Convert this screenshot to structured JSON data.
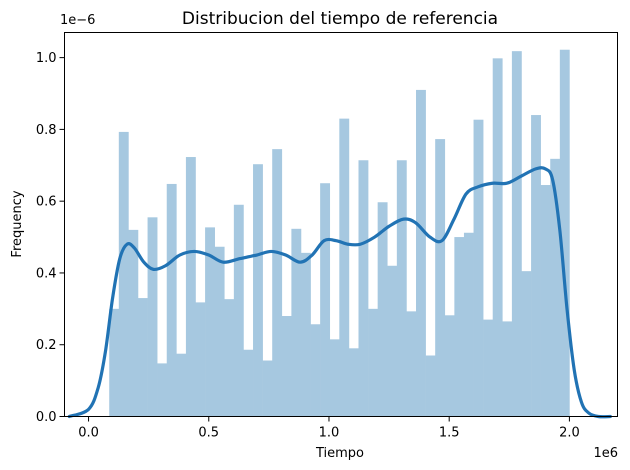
{
  "chart_data": {
    "type": "histogram-kde",
    "title": "Distribucion del tiempo de referencia",
    "xlabel": "Tiempo",
    "ylabel": "Frequency",
    "x_multiplier": "1e6",
    "y_multiplier": "1e−6",
    "xlim": [
      -0.1,
      2.2
    ],
    "ylim": [
      0,
      1.07
    ],
    "xticks": [
      0.0,
      0.5,
      1.0,
      1.5,
      2.0
    ],
    "xtick_labels": [
      "0.0",
      "0.5",
      "1.0",
      "1.5",
      "2.0"
    ],
    "yticks": [
      0.0,
      0.2,
      0.4,
      0.6,
      0.8,
      1.0
    ],
    "ytick_labels": [
      "0.0",
      "0.2",
      "0.4",
      "0.6",
      "0.8",
      "1.0"
    ],
    "bar_color": "#a6c8e0",
    "line_color": "#2173b4",
    "bins": {
      "start": 0.086,
      "end": 2.0,
      "values": [
        0.3,
        0.793,
        0.52,
        0.33,
        0.555,
        0.148,
        0.648,
        0.175,
        0.723,
        0.318,
        0.527,
        0.473,
        0.327,
        0.59,
        0.186,
        0.703,
        0.156,
        0.745,
        0.28,
        0.523,
        0.456,
        0.257,
        0.65,
        0.215,
        0.83,
        0.19,
        0.714,
        0.3,
        0.597,
        0.42,
        0.714,
        0.293,
        0.91,
        0.17,
        0.773,
        0.282,
        0.5,
        0.512,
        0.827,
        0.27,
        0.998,
        0.265,
        1.018,
        0.405,
        0.84,
        0.645,
        0.718,
        1.022
      ]
    },
    "kde": {
      "x": [
        -0.08,
        0.0,
        0.04,
        0.07,
        0.1,
        0.13,
        0.16,
        0.19,
        0.23,
        0.27,
        0.32,
        0.38,
        0.44,
        0.5,
        0.56,
        0.63,
        0.7,
        0.76,
        0.82,
        0.88,
        0.93,
        0.98,
        1.03,
        1.08,
        1.13,
        1.19,
        1.25,
        1.31,
        1.36,
        1.42,
        1.47,
        1.52,
        1.57,
        1.62,
        1.68,
        1.74,
        1.8,
        1.86,
        1.9,
        1.93,
        1.96,
        1.99,
        2.02,
        2.05,
        2.08,
        2.12,
        2.17
      ],
      "y": [
        0.0,
        0.02,
        0.08,
        0.18,
        0.33,
        0.44,
        0.48,
        0.47,
        0.43,
        0.41,
        0.42,
        0.45,
        0.46,
        0.45,
        0.43,
        0.44,
        0.45,
        0.46,
        0.45,
        0.43,
        0.45,
        0.49,
        0.49,
        0.48,
        0.48,
        0.5,
        0.53,
        0.55,
        0.54,
        0.5,
        0.49,
        0.55,
        0.62,
        0.64,
        0.65,
        0.65,
        0.67,
        0.69,
        0.69,
        0.66,
        0.52,
        0.3,
        0.13,
        0.04,
        0.01,
        0.0,
        0.0
      ]
    }
  }
}
